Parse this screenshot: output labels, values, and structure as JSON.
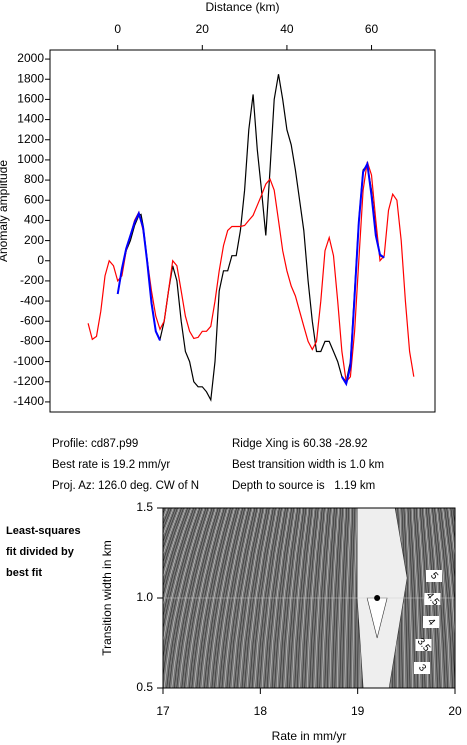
{
  "chart_data": [
    {
      "type": "line",
      "xlabel": "Distance (km)",
      "ylabel": "Anomaly amplitude",
      "xlim": [
        -16,
        75
      ],
      "xticks": [
        0,
        20,
        40,
        60
      ],
      "ylim": [
        -1500,
        2090
      ],
      "yticks": [
        -1400,
        -1200,
        -1000,
        -800,
        -600,
        -400,
        -200,
        0,
        200,
        400,
        600,
        800,
        1000,
        1200,
        1400,
        1600,
        1800,
        2000
      ],
      "series": [
        {
          "color": "#000000",
          "x": [
            0,
            1,
            2,
            3,
            4,
            5,
            5.5,
            6,
            7,
            8,
            9,
            10,
            11,
            12,
            13,
            14,
            15,
            16,
            17,
            18,
            19,
            20,
            21,
            22,
            23,
            24,
            25,
            26,
            27,
            28,
            29,
            30,
            31,
            32,
            33,
            34,
            35,
            36,
            37,
            38,
            39,
            40,
            41,
            42,
            43,
            44,
            45,
            46,
            47,
            48,
            49,
            50,
            51,
            52,
            53,
            54,
            55,
            56,
            57,
            58,
            59,
            60,
            61,
            62,
            63
          ],
          "values": [
            -330,
            -100,
            100,
            200,
            350,
            450,
            460,
            350,
            0,
            -400,
            -700,
            -780,
            -600,
            -300,
            -50,
            -200,
            -600,
            -900,
            -1000,
            -1200,
            -1250,
            -1250,
            -1300,
            -1380,
            -1000,
            -300,
            -100,
            -100,
            50,
            50,
            300,
            700,
            1300,
            1650,
            1100,
            700,
            250,
            900,
            1600,
            1850,
            1600,
            1300,
            1150,
            900,
            600,
            300,
            -200,
            -600,
            -900,
            -900,
            -800,
            -800,
            -900,
            -1000,
            -1150,
            -1200,
            -1000,
            -300,
            400,
            900,
            950,
            700,
            300,
            50,
            30
          ]
        },
        {
          "color": "#ff0000",
          "x": [
            -7,
            -6,
            -5,
            -4,
            -3,
            -2,
            -1,
            0,
            1,
            2,
            3,
            4,
            5,
            6,
            7,
            8,
            9,
            10,
            11,
            12,
            13,
            14,
            15,
            16,
            17,
            18,
            19,
            20,
            21,
            22,
            23,
            24,
            25,
            26,
            27,
            28,
            29,
            30,
            31,
            32,
            33,
            34,
            35,
            36,
            37,
            38,
            39,
            40,
            41,
            42,
            43,
            44,
            45,
            46,
            47,
            48,
            49,
            50,
            51,
            52,
            53,
            54,
            55,
            56,
            57,
            58,
            59,
            60,
            61,
            62,
            63,
            64,
            65,
            66,
            67,
            68,
            69,
            70
          ],
          "values": [
            -620,
            -780,
            -750,
            -500,
            -150,
            0,
            -50,
            -200,
            -150,
            100,
            250,
            400,
            480,
            300,
            0,
            -300,
            -550,
            -680,
            -600,
            -300,
            0,
            -50,
            -300,
            -550,
            -700,
            -770,
            -760,
            -700,
            -700,
            -650,
            -400,
            -100,
            150,
            300,
            340,
            340,
            340,
            350,
            400,
            450,
            550,
            650,
            760,
            810,
            700,
            400,
            100,
            -100,
            -250,
            -350,
            -500,
            -650,
            -800,
            -880,
            -800,
            -400,
            100,
            230,
            50,
            -400,
            -900,
            -1200,
            -1150,
            -700,
            0,
            700,
            980,
            850,
            400,
            0,
            50,
            500,
            660,
            600,
            200,
            -400,
            -900,
            -1150
          ]
        },
        {
          "color": "#0000ff",
          "x": [
            0,
            1,
            2,
            3,
            4,
            5,
            6,
            7,
            8,
            9,
            10,
            30,
            53,
            54,
            55,
            56,
            57,
            58,
            59,
            60,
            61,
            62,
            63
          ],
          "values": [
            -330,
            -80,
            120,
            250,
            380,
            470,
            330,
            -20,
            -420,
            -700,
            -790,
            null,
            -1150,
            -1220,
            -1050,
            -350,
            380,
            880,
            960,
            650,
            250,
            60,
            30
          ]
        }
      ]
    },
    {
      "type": "contour",
      "title": [
        "Least-squares",
        "fit divided by",
        "best fit"
      ],
      "xlabel": "Rate in mm/yr",
      "ylabel": "Transition width in km",
      "xlim": [
        17,
        20
      ],
      "xticks": [
        17,
        18,
        19,
        20
      ],
      "ylim": [
        0.5,
        1.5
      ],
      "yticks": [
        0.5,
        {
          "value": 1,
          "label": "1.0"
        },
        1.5
      ],
      "levels": [
        5,
        4.5,
        4,
        3.5,
        3
      ],
      "best_fit": {
        "x": 19.2,
        "y": 1.0
      }
    }
  ],
  "info": [
    "Profile: cd87.p99",
    "Ridge Xing is 60.38 -28.92",
    "Best rate is 19.2 mm/yr",
    "Best transition width is 1.0 km",
    "Proj. Az: 126.0 deg. CW of N",
    "Depth to source is   1.19 km"
  ]
}
